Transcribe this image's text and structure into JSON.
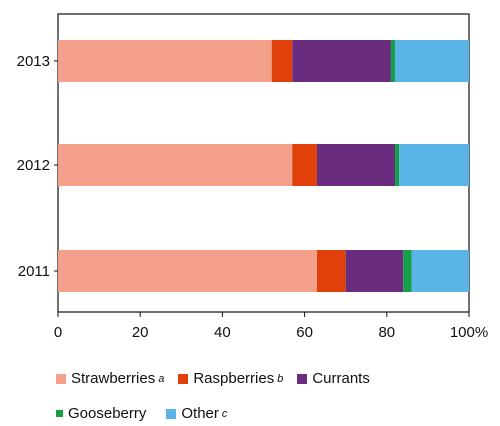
{
  "chart_data": {
    "type": "bar",
    "orientation": "horizontal",
    "stacked": true,
    "categories": [
      "2013",
      "2012",
      "2011"
    ],
    "series": [
      {
        "name": "Strawberries",
        "superscript": "a",
        "color": "#f4a08a",
        "values": [
          52,
          57,
          63
        ]
      },
      {
        "name": "Raspberries",
        "superscript": "b",
        "color": "#e0410b",
        "values": [
          5,
          6,
          7
        ]
      },
      {
        "name": "Currants",
        "superscript": "",
        "color": "#6a2c7f",
        "values": [
          24,
          19,
          14
        ]
      },
      {
        "name": "Gooseberry",
        "superscript": "",
        "color": "#15a046",
        "values": [
          1,
          1,
          2
        ]
      },
      {
        "name": "Other",
        "superscript": "c",
        "color": "#5ab4e6",
        "values": [
          18,
          17,
          14
        ]
      }
    ],
    "xlim": [
      0,
      100
    ],
    "x_ticks": [
      "0",
      "20",
      "40",
      "60",
      "80",
      "100%"
    ],
    "grid": false,
    "legend_position": "bottom"
  }
}
